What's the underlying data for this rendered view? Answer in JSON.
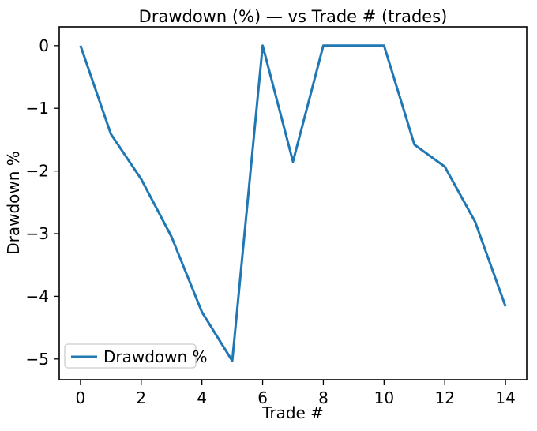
{
  "chart_data": {
    "type": "line",
    "title": "Drawdown (%) — vs Trade # (trades)",
    "xlabel": "Trade #",
    "ylabel": "Drawdown %",
    "x": [
      0,
      1,
      2,
      3,
      4,
      5,
      6,
      7,
      8,
      9,
      10,
      11,
      12,
      13,
      14
    ],
    "series": [
      {
        "name": "Drawdown %",
        "color": "#1f77b4",
        "values": [
          0.0,
          -1.41,
          -2.13,
          -3.05,
          -4.25,
          -5.03,
          0.0,
          -1.85,
          0.0,
          0.0,
          0.0,
          -1.58,
          -1.93,
          -2.81,
          -4.16
        ]
      }
    ],
    "xticks": [
      0,
      2,
      4,
      6,
      8,
      10,
      12,
      14
    ],
    "yticks": [
      0,
      -1,
      -2,
      -3,
      -4,
      -5
    ],
    "xlim": [
      -0.7,
      14.7
    ],
    "ylim": [
      -5.33,
      0.3
    ],
    "grid": false,
    "legend": {
      "position": "lower left",
      "entries": [
        "Drawdown %"
      ]
    },
    "colors": {
      "line": "#1f77b4",
      "spine": "#000000",
      "legend_border": "#cccccc",
      "background": "#ffffff"
    }
  }
}
